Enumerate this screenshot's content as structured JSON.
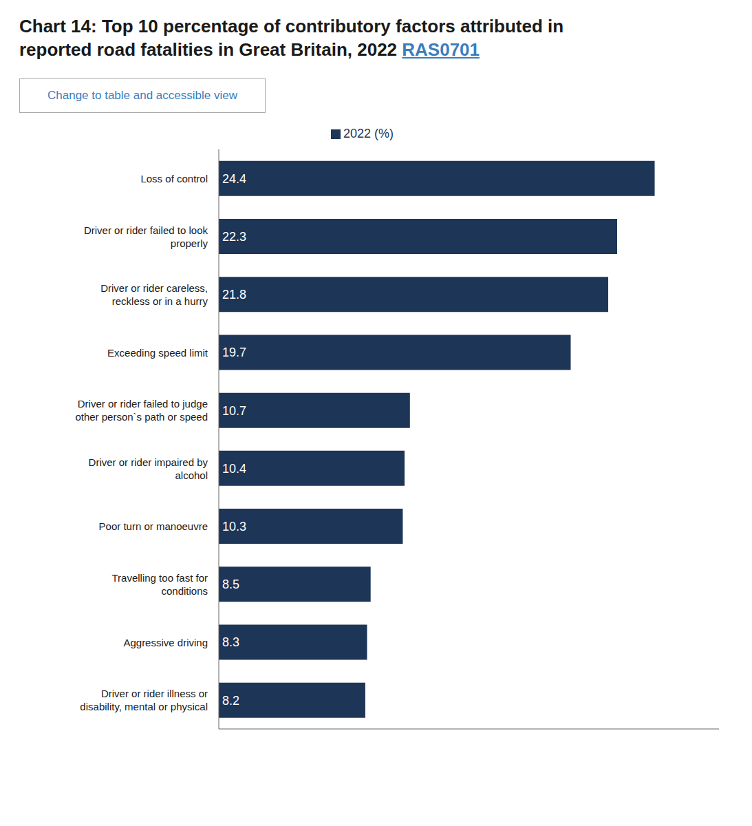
{
  "chart_data": {
    "type": "bar",
    "orientation": "horizontal",
    "title": "Chart 14: Top 10 percentage of contributory factors attributed in\nreported road fatalities in Great Britain, 2022 ",
    "annotations": [
      "RAS0701",
      "Change to table and accessible view"
    ],
    "categories": [
      "Loss of control",
      "Driver or rider failed to look\nproperly",
      "Driver or rider careless,\nreckless or in a hurry",
      "Exceeding speed limit",
      "Driver or rider failed to judge\nother person`s path or speed",
      "Driver or rider impaired by\nalcohol",
      "Poor turn or manoeuvre",
      "Travelling too fast for\nconditions",
      "Aggressive driving",
      "Driver or rider illness or\ndisability, mental or physical"
    ],
    "series": [
      {
        "name": "2022 (%)",
        "color": "#1d3557",
        "values": [
          24.4,
          22.3,
          21.8,
          19.7,
          10.7,
          10.4,
          10.3,
          8.5,
          8.3,
          8.2
        ]
      }
    ],
    "xlim": [
      0,
      28
    ],
    "grid": false,
    "legend": "top",
    "data_labels": true,
    "tick_labels": "y"
  }
}
